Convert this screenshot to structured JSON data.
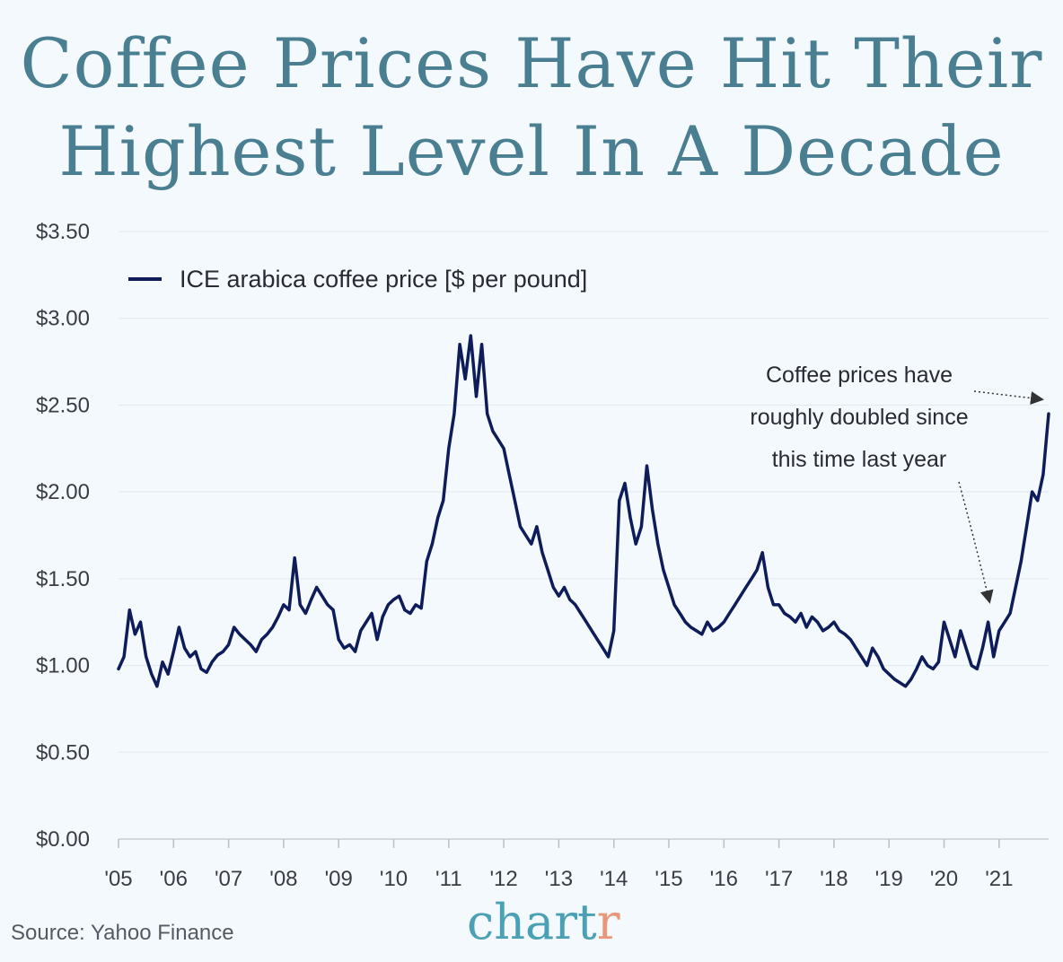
{
  "title_lines": [
    "Coffee Prices Have Hit Their",
    "Highest Level In A Decade"
  ],
  "source": "Source: Yahoo Finance",
  "brand": {
    "main": "chart",
    "accent": "r"
  },
  "colors": {
    "line": "#0f1c5a",
    "title": "#4a7f91",
    "background": "#f3f9fd",
    "brand": "#4aa0b5",
    "brand_accent": "#e69878"
  },
  "chart_data": {
    "type": "line",
    "title": "Coffee Prices Have Hit Their Highest Level In A Decade",
    "xlabel": "",
    "ylabel": "",
    "ylim": [
      0,
      3.5
    ],
    "xlim": [
      2005.0,
      2021.9
    ],
    "grid": true,
    "legend_position": "top-left",
    "y_ticks": [
      {
        "value": 0.0,
        "label": "$0.00"
      },
      {
        "value": 0.5,
        "label": "$0.50"
      },
      {
        "value": 1.0,
        "label": "$1.00"
      },
      {
        "value": 1.5,
        "label": "$1.50"
      },
      {
        "value": 2.0,
        "label": "$2.00"
      },
      {
        "value": 2.5,
        "label": "$2.50"
      },
      {
        "value": 3.0,
        "label": "$3.00"
      },
      {
        "value": 3.5,
        "label": "$3.50"
      }
    ],
    "x_ticks": [
      {
        "value": 2005,
        "label": "'05"
      },
      {
        "value": 2006,
        "label": "'06"
      },
      {
        "value": 2007,
        "label": "'07"
      },
      {
        "value": 2008,
        "label": "'08"
      },
      {
        "value": 2009,
        "label": "'09"
      },
      {
        "value": 2010,
        "label": "'10"
      },
      {
        "value": 2011,
        "label": "'11"
      },
      {
        "value": 2012,
        "label": "'12"
      },
      {
        "value": 2013,
        "label": "'13"
      },
      {
        "value": 2014,
        "label": "'14"
      },
      {
        "value": 2015,
        "label": "'15"
      },
      {
        "value": 2016,
        "label": "'16"
      },
      {
        "value": 2017,
        "label": "'17"
      },
      {
        "value": 2018,
        "label": "'18"
      },
      {
        "value": 2019,
        "label": "'19"
      },
      {
        "value": 2020,
        "label": "'20"
      },
      {
        "value": 2021,
        "label": "'21"
      }
    ],
    "series": [
      {
        "name": "ICE arabica coffee price [$ per pound]",
        "x": [
          2005.0,
          2005.1,
          2005.2,
          2005.3,
          2005.4,
          2005.5,
          2005.6,
          2005.7,
          2005.8,
          2005.9,
          2006.0,
          2006.1,
          2006.2,
          2006.3,
          2006.4,
          2006.5,
          2006.6,
          2006.7,
          2006.8,
          2006.9,
          2007.0,
          2007.1,
          2007.2,
          2007.3,
          2007.4,
          2007.5,
          2007.6,
          2007.7,
          2007.8,
          2007.9,
          2008.0,
          2008.1,
          2008.2,
          2008.3,
          2008.4,
          2008.5,
          2008.6,
          2008.7,
          2008.8,
          2008.9,
          2009.0,
          2009.1,
          2009.2,
          2009.3,
          2009.4,
          2009.5,
          2009.6,
          2009.7,
          2009.8,
          2009.9,
          2010.0,
          2010.1,
          2010.2,
          2010.3,
          2010.4,
          2010.5,
          2010.6,
          2010.7,
          2010.8,
          2010.9,
          2011.0,
          2011.1,
          2011.2,
          2011.3,
          2011.4,
          2011.5,
          2011.6,
          2011.7,
          2011.8,
          2011.9,
          2012.0,
          2012.1,
          2012.2,
          2012.3,
          2012.4,
          2012.5,
          2012.6,
          2012.7,
          2012.8,
          2012.9,
          2013.0,
          2013.1,
          2013.2,
          2013.3,
          2013.4,
          2013.5,
          2013.6,
          2013.7,
          2013.8,
          2013.9,
          2014.0,
          2014.1,
          2014.2,
          2014.3,
          2014.4,
          2014.5,
          2014.6,
          2014.7,
          2014.8,
          2014.9,
          2015.0,
          2015.1,
          2015.2,
          2015.3,
          2015.4,
          2015.5,
          2015.6,
          2015.7,
          2015.8,
          2015.9,
          2016.0,
          2016.1,
          2016.2,
          2016.3,
          2016.4,
          2016.5,
          2016.6,
          2016.7,
          2016.8,
          2016.9,
          2017.0,
          2017.1,
          2017.2,
          2017.3,
          2017.4,
          2017.5,
          2017.6,
          2017.7,
          2017.8,
          2017.9,
          2018.0,
          2018.1,
          2018.2,
          2018.3,
          2018.4,
          2018.5,
          2018.6,
          2018.7,
          2018.8,
          2018.9,
          2019.0,
          2019.1,
          2019.2,
          2019.3,
          2019.4,
          2019.5,
          2019.6,
          2019.7,
          2019.8,
          2019.9,
          2020.0,
          2020.1,
          2020.2,
          2020.3,
          2020.4,
          2020.5,
          2020.6,
          2020.7,
          2020.8,
          2020.9,
          2021.0,
          2021.1,
          2021.2,
          2021.3,
          2021.4,
          2021.5,
          2021.6,
          2021.7,
          2021.8,
          2021.9
        ],
        "values": [
          0.98,
          1.05,
          1.32,
          1.18,
          1.25,
          1.05,
          0.95,
          0.88,
          1.02,
          0.95,
          1.08,
          1.22,
          1.1,
          1.05,
          1.08,
          0.98,
          0.96,
          1.02,
          1.06,
          1.08,
          1.12,
          1.22,
          1.18,
          1.15,
          1.12,
          1.08,
          1.15,
          1.18,
          1.22,
          1.28,
          1.35,
          1.32,
          1.62,
          1.35,
          1.3,
          1.38,
          1.45,
          1.4,
          1.35,
          1.32,
          1.15,
          1.1,
          1.12,
          1.08,
          1.2,
          1.25,
          1.3,
          1.15,
          1.28,
          1.35,
          1.38,
          1.4,
          1.32,
          1.3,
          1.35,
          1.33,
          1.6,
          1.7,
          1.85,
          1.95,
          2.25,
          2.45,
          2.85,
          2.65,
          2.9,
          2.55,
          2.85,
          2.45,
          2.35,
          2.3,
          2.25,
          2.1,
          1.95,
          1.8,
          1.75,
          1.7,
          1.8,
          1.65,
          1.55,
          1.45,
          1.4,
          1.45,
          1.38,
          1.35,
          1.3,
          1.25,
          1.2,
          1.15,
          1.1,
          1.05,
          1.2,
          1.95,
          2.05,
          1.85,
          1.7,
          1.8,
          2.15,
          1.9,
          1.7,
          1.55,
          1.45,
          1.35,
          1.3,
          1.25,
          1.22,
          1.2,
          1.18,
          1.25,
          1.2,
          1.22,
          1.25,
          1.3,
          1.35,
          1.4,
          1.45,
          1.5,
          1.55,
          1.65,
          1.45,
          1.35,
          1.35,
          1.3,
          1.28,
          1.25,
          1.3,
          1.22,
          1.28,
          1.25,
          1.2,
          1.22,
          1.25,
          1.2,
          1.18,
          1.15,
          1.1,
          1.05,
          1.0,
          1.1,
          1.05,
          0.98,
          0.95,
          0.92,
          0.9,
          0.88,
          0.92,
          0.98,
          1.05,
          1.0,
          0.98,
          1.02,
          1.25,
          1.15,
          1.05,
          1.2,
          1.1,
          1.0,
          0.98,
          1.1,
          1.25,
          1.05,
          1.2,
          1.25,
          1.3,
          1.45,
          1.6,
          1.8,
          2.0,
          1.95,
          2.1,
          2.45
        ]
      }
    ],
    "annotations": [
      {
        "lines": [
          "Coffee prices have",
          "roughly doubled since",
          "this time last year"
        ]
      }
    ]
  }
}
